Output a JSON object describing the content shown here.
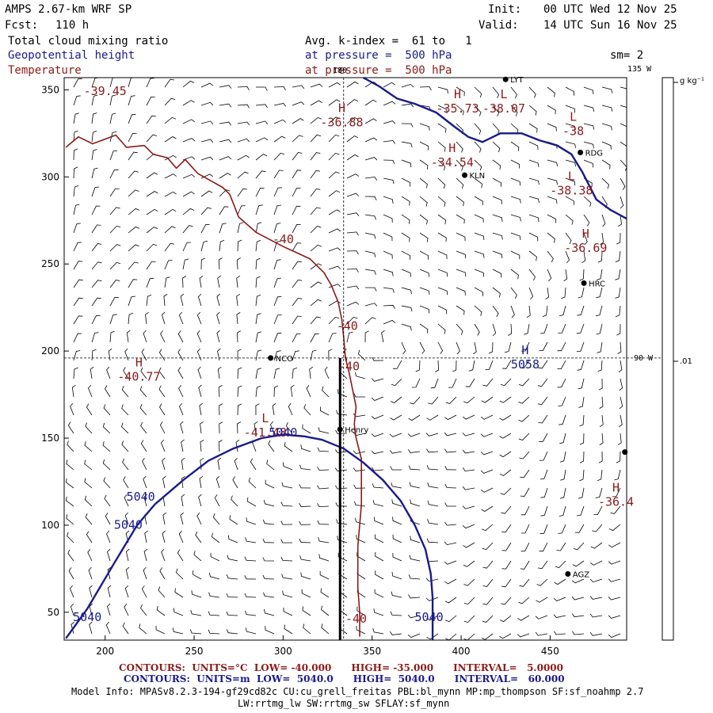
{
  "header": {
    "model": "AMPS 2.67-km WRF SP",
    "forecast_label": "Fcst:",
    "forecast_value": "110 h",
    "init_label": "Init:",
    "init_value": "00 UTC Wed 12 Nov 25",
    "valid_label": "Valid:",
    "valid_value": "14 UTC Sun 16 Nov 25",
    "field1": "Total cloud mixing ratio",
    "field2": "Geopotential height",
    "field3": "Temperature",
    "avg": "Avg. k-index =  61 to   1",
    "pressure1": "at pressure =  500 hPa",
    "pressure2": "at pressure =  500 hPa",
    "smoothing": "sm= 2"
  },
  "map": {
    "x_ticks": [
      "200",
      "250",
      "300",
      "350",
      "400",
      "450"
    ],
    "y_ticks": [
      "350",
      "300",
      "250",
      "200",
      "150",
      "100",
      "50"
    ],
    "x_tick_values": [
      200,
      250,
      300,
      350,
      400,
      450
    ],
    "y_tick_values": [
      350,
      300,
      250,
      200,
      150,
      100,
      50
    ],
    "x_range": [
      177,
      493
    ],
    "y_range": [
      34,
      357
    ],
    "lon_top_label": "180",
    "lon_135": "135 W",
    "lon_90": "90 W",
    "colorbar_unit": "g kg⁻¹",
    "colorbar_value": ".01",
    "stations": [
      {
        "name": "KLN",
        "x": 402,
        "y": 301
      },
      {
        "name": "RDG",
        "x": 467,
        "y": 314
      },
      {
        "name": "HRC",
        "x": 469,
        "y": 239
      },
      {
        "name": "NCO",
        "x": 293,
        "y": 196
      },
      {
        "name": "Henry",
        "x": 332,
        "y": 155
      },
      {
        "name": "AGZ",
        "x": 460,
        "y": 72
      },
      {
        "name": "LYT",
        "x": 425,
        "y": 356
      },
      {
        "name": "",
        "x": 492,
        "y": 142
      }
    ],
    "temp_labels": [
      {
        "hl": "",
        "value": "-39.45",
        "x": 200,
        "y": 347
      },
      {
        "hl": "H",
        "value": "-36.88",
        "x": 333,
        "y": 329
      },
      {
        "hl": "H",
        "value": "-35.73",
        "x": 398,
        "y": 337
      },
      {
        "hl": "L",
        "value": "-38.07",
        "x": 424,
        "y": 337
      },
      {
        "hl": "L",
        "value": "-38",
        "x": 463,
        "y": 324
      },
      {
        "hl": "H",
        "value": "-34.54",
        "x": 395,
        "y": 306
      },
      {
        "hl": "L",
        "value": "-38.38",
        "x": 462,
        "y": 290
      },
      {
        "hl": "H",
        "value": "-36.69",
        "x": 470,
        "y": 257
      },
      {
        "hl": "H",
        "value": "-40.77",
        "x": 219,
        "y": 183
      },
      {
        "hl": "L",
        "value": "-41.48",
        "x": 290,
        "y": 151
      },
      {
        "hl": "H",
        "value": "-36.4",
        "x": 487,
        "y": 111
      },
      {
        "hl": "",
        "value": "-40",
        "x": 300,
        "y": 262
      },
      {
        "hl": "",
        "value": "-40",
        "x": 336,
        "y": 212
      },
      {
        "hl": "",
        "value": "-40",
        "x": 337,
        "y": 189
      },
      {
        "hl": "",
        "value": "-40",
        "x": 341,
        "y": 44
      }
    ],
    "height_labels": [
      {
        "hl": "H",
        "value": "5058",
        "x": 436,
        "y": 190
      },
      {
        "hl": "",
        "value": "5040",
        "x": 300,
        "y": 151
      },
      {
        "hl": "",
        "value": "5040",
        "x": 220,
        "y": 114
      },
      {
        "hl": "",
        "value": "5040",
        "x": 213,
        "y": 98
      },
      {
        "hl": "",
        "value": "5040",
        "x": 190,
        "y": 45
      },
      {
        "hl": "",
        "value": "5040",
        "x": 382,
        "y": 45
      }
    ],
    "temp_contours": [
      [
        [
          178,
          317
        ],
        [
          185,
          323
        ],
        [
          193,
          319
        ],
        [
          206,
          324
        ],
        [
          212,
          317
        ],
        [
          222,
          318
        ],
        [
          227,
          313
        ],
        [
          235,
          311
        ],
        [
          240,
          305
        ],
        [
          245,
          310
        ],
        [
          252,
          302
        ],
        [
          259,
          298
        ],
        [
          266,
          294
        ],
        [
          270,
          290
        ],
        [
          275,
          277
        ],
        [
          285,
          268
        ],
        [
          300,
          260
        ],
        [
          315,
          253
        ],
        [
          323,
          245
        ],
        [
          327,
          238
        ],
        [
          331,
          228
        ],
        [
          333,
          218
        ],
        [
          334,
          208
        ],
        [
          335,
          196
        ],
        [
          337,
          188
        ],
        [
          339,
          178
        ],
        [
          341,
          168
        ],
        [
          340,
          158
        ],
        [
          341,
          150
        ],
        [
          344,
          138
        ],
        [
          344,
          124
        ],
        [
          344,
          112
        ],
        [
          343,
          100
        ],
        [
          342,
          88
        ],
        [
          342,
          76
        ],
        [
          342,
          64
        ],
        [
          343,
          50
        ],
        [
          343,
          36
        ]
      ]
    ],
    "height_contours": [
      [
        [
          178,
          35
        ],
        [
          190,
          52
        ],
        [
          205,
          78
        ],
        [
          218,
          100
        ],
        [
          228,
          112
        ],
        [
          244,
          126
        ],
        [
          258,
          137
        ],
        [
          272,
          144
        ],
        [
          288,
          150
        ],
        [
          300,
          152
        ],
        [
          312,
          151
        ],
        [
          322,
          149
        ],
        [
          334,
          144
        ],
        [
          345,
          136
        ],
        [
          356,
          126
        ],
        [
          366,
          114
        ],
        [
          374,
          100
        ],
        [
          380,
          86
        ],
        [
          383,
          72
        ],
        [
          384,
          58
        ],
        [
          384,
          34
        ]
      ],
      [
        [
          345,
          357
        ],
        [
          354,
          352
        ],
        [
          364,
          345
        ],
        [
          374,
          342
        ],
        [
          386,
          337
        ],
        [
          396,
          329
        ],
        [
          404,
          323
        ],
        [
          412,
          320
        ],
        [
          422,
          325
        ],
        [
          434,
          325
        ],
        [
          444,
          321
        ],
        [
          454,
          318
        ],
        [
          462,
          313
        ],
        [
          468,
          303
        ],
        [
          472,
          295
        ],
        [
          476,
          287
        ],
        [
          484,
          281
        ],
        [
          493,
          276
        ]
      ]
    ],
    "cross_section_x": 332,
    "cross_section_y0": 34,
    "cross_section_y1": 196,
    "crosshair_x": 334,
    "crosshair_y": 196,
    "colors": {
      "temperature": "#8b1a1a",
      "height": "#1a1a8c",
      "barb": "#000000"
    }
  },
  "footer": {
    "line1": "CONTOURS:  UNITS=°C  LOW= -40.000      HIGH= -35.000      INTERVAL=   5.0000",
    "line2": "CONTOURS:  UNITS=m  LOW=  5040.0      HIGH=  5040.0      INTERVAL=   60.000",
    "model_info": "Model Info: MPASv8.2.3-194-gf29cd82c CU:cu_grell_freitas PBL:bl_mynn MP:mp_thompson SF:sf_noahmp 2.7",
    "model_info2": "LW:rrtmg_lw SW:rrtmg_sw SFLAY:sf_mynn"
  }
}
